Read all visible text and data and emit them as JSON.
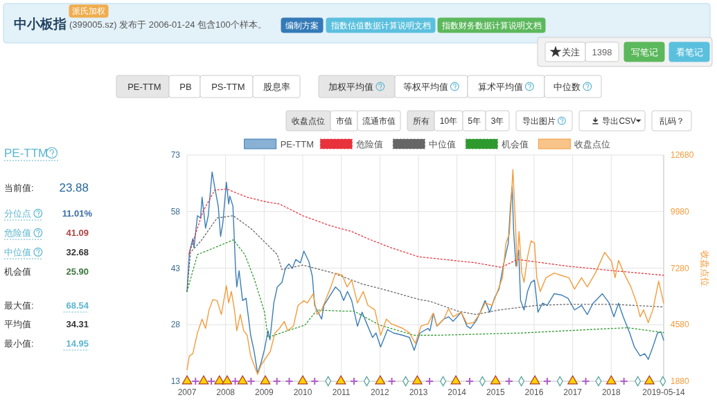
{
  "chart_data": {
    "type": "line",
    "title": "中小板指",
    "subtitle": "(399005.sz) 发布于 2006-01-24 包含100个样本。",
    "y2label": "收盘点位",
    "xlim": [
      2007,
      2019.36
    ],
    "xticks": [
      2007,
      2008,
      2009,
      2010,
      2011,
      2012,
      2013,
      2014,
      2015,
      2016,
      2017,
      2018,
      {
        "value": 2019.36,
        "label": "2019-05-14"
      }
    ],
    "ylim": [
      13,
      73
    ],
    "yticks": [
      13,
      28,
      43,
      58,
      73
    ],
    "y2lim": [
      1880,
      12680
    ],
    "y2ticks": [
      1880,
      4580,
      7280,
      9980,
      12680
    ],
    "grid": true,
    "legend": "top",
    "series": [
      {
        "name": "PE-TTM",
        "color": "#3b7db5",
        "line_style": "solid",
        "x": [
          2007.0,
          2007.06,
          2007.15,
          2007.18,
          2007.27,
          2007.35,
          2007.39,
          2007.43,
          2007.48,
          2007.55,
          2007.65,
          2007.72,
          2007.81,
          2007.87,
          2007.93,
          2008.02,
          2008.08,
          2008.11,
          2008.19,
          2008.26,
          2008.29,
          2008.35,
          2008.44,
          2008.53,
          2008.65,
          2008.74,
          2008.83,
          2008.92,
          2009.01,
          2009.1,
          2009.15,
          2009.25,
          2009.34,
          2009.46,
          2009.55,
          2009.64,
          2009.73,
          2009.82,
          2009.94,
          2010.03,
          2010.16,
          2010.25,
          2010.31,
          2010.4,
          2010.49,
          2010.55,
          2010.7,
          2010.85,
          2010.97,
          2011.06,
          2011.16,
          2011.27,
          2011.42,
          2011.54,
          2011.66,
          2011.81,
          2011.9,
          2012.02,
          2012.2,
          2012.35,
          2012.59,
          2012.77,
          2012.89,
          2013.04,
          2013.25,
          2013.3,
          2013.39,
          2013.48,
          2013.66,
          2013.78,
          2013.9,
          2014.11,
          2014.26,
          2014.35,
          2014.49,
          2014.58,
          2014.73,
          2014.85,
          2014.97,
          2015.09,
          2015.21,
          2015.33,
          2015.39,
          2015.43,
          2015.47,
          2015.53,
          2015.6,
          2015.65,
          2015.74,
          2015.83,
          2015.92,
          2016.01,
          2016.1,
          2016.22,
          2016.34,
          2016.52,
          2016.7,
          2016.88,
          2017.05,
          2017.23,
          2017.38,
          2017.53,
          2017.77,
          2017.95,
          2018.07,
          2018.19,
          2018.31,
          2018.48,
          2018.6,
          2018.75,
          2018.87,
          2018.96,
          2019.08,
          2019.2,
          2019.29,
          2019.36
        ],
        "values": [
          36.8,
          47.2,
          50.8,
          48.4,
          56.9,
          56.3,
          61.8,
          58.2,
          53.6,
          56.9,
          68.5,
          64.3,
          59.4,
          51.4,
          55.1,
          65.8,
          60.0,
          62.1,
          59.4,
          42.3,
          38.0,
          42.3,
          34.4,
          35.0,
          25.2,
          20.9,
          15.1,
          17.9,
          21.5,
          26.4,
          24.0,
          33.7,
          38.0,
          39.2,
          42.9,
          44.1,
          42.9,
          45.3,
          44.4,
          47.5,
          44.7,
          40.8,
          33.1,
          31.3,
          29.5,
          33.1,
          35.6,
          38.0,
          36.8,
          34.4,
          36.8,
          34.4,
          27.6,
          31.3,
          28.3,
          24.6,
          25.8,
          22.1,
          26.7,
          25.8,
          25.2,
          24.6,
          21.2,
          25.8,
          27.0,
          26.4,
          31.0,
          27.6,
          29.5,
          30.1,
          28.9,
          31.3,
          27.6,
          27.0,
          28.9,
          30.7,
          34.4,
          31.3,
          35.0,
          37.4,
          44.1,
          49.6,
          60.0,
          64.6,
          52.7,
          43.5,
          47.8,
          34.4,
          31.9,
          36.8,
          39.2,
          39.8,
          31.3,
          33.7,
          33.1,
          36.2,
          35.9,
          35.0,
          31.9,
          33.1,
          30.7,
          33.7,
          36.2,
          33.7,
          30.1,
          33.7,
          30.1,
          25.8,
          22.1,
          19.7,
          20.3,
          18.8,
          22.1,
          25.8,
          26.1,
          23.9
        ]
      },
      {
        "name": "危险值",
        "color": "#e8323c",
        "line_style": "dotted",
        "x": [
          2007.05,
          2007.24,
          2007.42,
          2007.72,
          2008.02,
          2008.56,
          2009.04,
          2009.4,
          2010.0,
          2010.73,
          2011.27,
          2011.69,
          2012.29,
          2013.01,
          2013.49,
          2014.49,
          2015.15,
          2015.57,
          2016.88,
          2018.07,
          2019.36
        ],
        "values": [
          46.6,
          52.7,
          58.2,
          63.7,
          64.0,
          61.8,
          60.6,
          60.0,
          56.9,
          54.2,
          52.7,
          50.8,
          48.4,
          46.0,
          45.5,
          44.4,
          43.2,
          45.3,
          43.5,
          42.3,
          41.1
        ]
      },
      {
        "name": "中位值",
        "color": "#666666",
        "line_style": "dotted",
        "x": [
          2007.0,
          2007.09,
          2007.36,
          2007.78,
          2008.2,
          2008.68,
          2009.34,
          2009.46,
          2010.0,
          2010.79,
          2011.51,
          2012.29,
          2013.01,
          2013.3,
          2014.02,
          2014.49,
          2015.09,
          2016.04,
          2016.88,
          2018.07,
          2019.36
        ],
        "values": [
          36.8,
          47.2,
          50.2,
          56.3,
          56.9,
          53.3,
          46.6,
          42.6,
          43.8,
          41.7,
          38.9,
          36.8,
          34.7,
          34.2,
          31.6,
          30.7,
          31.9,
          33.1,
          33.4,
          33.4,
          32.7
        ]
      },
      {
        "name": "机会值",
        "color": "#2e9a2e",
        "line_style": "dotted",
        "x": [
          2007.0,
          2007.27,
          2007.57,
          2008.2,
          2008.5,
          2008.74,
          2009.01,
          2009.1,
          2009.52,
          2010.06,
          2010.37,
          2011.03,
          2011.33,
          2011.99,
          2012.89,
          2013.49,
          2015.68,
          2018.42,
          2019.36
        ],
        "values": [
          36.8,
          46.6,
          47.8,
          50.5,
          46.6,
          40.2,
          31.3,
          24.6,
          26.1,
          27.9,
          31.9,
          31.6,
          31.6,
          27.9,
          25.2,
          25.2,
          25.8,
          27.2,
          25.9
        ]
      },
      {
        "name": "收盘点位",
        "color": "#f39c3c",
        "line_style": "solid",
        "axis": "y2",
        "x": [
          2007.0,
          2007.06,
          2007.15,
          2007.27,
          2007.39,
          2007.48,
          2007.57,
          2007.67,
          2007.78,
          2007.89,
          2008.02,
          2008.08,
          2008.15,
          2008.23,
          2008.29,
          2008.38,
          2008.47,
          2008.56,
          2008.65,
          2008.74,
          2008.83,
          2008.92,
          2009.04,
          2009.16,
          2009.28,
          2009.4,
          2009.52,
          2009.61,
          2009.76,
          2009.88,
          2010.03,
          2010.12,
          2010.27,
          2010.37,
          2010.49,
          2010.61,
          2010.73,
          2010.85,
          2011.03,
          2011.15,
          2011.27,
          2011.42,
          2011.57,
          2011.69,
          2011.87,
          2012.02,
          2012.17,
          2012.29,
          2012.59,
          2012.77,
          2012.92,
          2013.07,
          2013.25,
          2013.38,
          2013.48,
          2013.66,
          2013.78,
          2013.9,
          2014.11,
          2014.26,
          2014.43,
          2014.58,
          2014.73,
          2014.91,
          2015.03,
          2015.18,
          2015.27,
          2015.36,
          2015.45,
          2015.52,
          2015.56,
          2015.61,
          2015.68,
          2015.74,
          2015.83,
          2015.92,
          2016.01,
          2016.07,
          2016.16,
          2016.31,
          2016.52,
          2016.7,
          2016.9,
          2017.05,
          2017.23,
          2017.38,
          2017.59,
          2017.83,
          2018.01,
          2018.1,
          2018.19,
          2018.33,
          2018.51,
          2018.66,
          2018.75,
          2018.84,
          2018.96,
          2019.08,
          2019.23,
          2019.36
        ],
        "values": [
          2429,
          3088,
          3198,
          4187,
          4846,
          4407,
          5286,
          5780,
          5725,
          5066,
          6439,
          5615,
          6165,
          5286,
          4297,
          5066,
          4297,
          4077,
          3088,
          2649,
          2209,
          2649,
          2978,
          3308,
          4187,
          4407,
          4736,
          4297,
          4516,
          5505,
          5725,
          5615,
          6055,
          5066,
          5286,
          5835,
          6384,
          7044,
          6934,
          6384,
          6714,
          5615,
          6165,
          5505,
          5286,
          4077,
          4846,
          4627,
          4407,
          4187,
          3693,
          4516,
          4627,
          5121,
          4516,
          4846,
          5341,
          4956,
          5176,
          4627,
          4681,
          5066,
          5615,
          5505,
          6055,
          6824,
          8472,
          8912,
          11988,
          9241,
          7373,
          9021,
          7044,
          6604,
          7813,
          8582,
          8472,
          6824,
          6165,
          6824,
          7044,
          6934,
          6824,
          6275,
          6824,
          6384,
          7044,
          8033,
          7593,
          6824,
          7648,
          7044,
          6384,
          5615,
          4956,
          5286,
          4681,
          5286,
          6659,
          5615
        ]
      },
      {
        "type": "scatter",
        "marker": "triangle",
        "color": "#ffd200",
        "x": [
          2007.0,
          2007.43,
          2007.84,
          2008.04,
          2008.44,
          2009.03,
          2010.0,
          2010.99,
          2012.01,
          2012.97,
          2013.97,
          2015.0,
          2016.02,
          2017.0,
          2018.0,
          2018.99
        ],
        "values": [
          13,
          13,
          13,
          13,
          13,
          13,
          13,
          13,
          13,
          13,
          13,
          13,
          13,
          13,
          13,
          13
        ]
      },
      {
        "type": "scatter",
        "marker": "cross",
        "color": "#b05cc8",
        "x": [
          2007.22,
          2007.63,
          2008.25,
          2008.66,
          2009.33,
          2009.65,
          2010.31,
          2011.33,
          2012.31,
          2013.29,
          2014.33,
          2015.35,
          2016.34,
          2017.34,
          2018.33
        ],
        "values": [
          13,
          13,
          13,
          13,
          13,
          13,
          13,
          13,
          13,
          13,
          13,
          13,
          13,
          13,
          13
        ]
      },
      {
        "type": "scatter",
        "marker": "diamond",
        "color": "#5aa6a0",
        "x": [
          2010.66,
          2011.66,
          2012.67,
          2013.64,
          2014.66,
          2015.67,
          2016.67,
          2017.67,
          2018.69,
          2019.34
        ],
        "values": [
          13,
          13,
          13,
          13,
          13,
          13,
          13,
          13,
          13,
          13
        ]
      }
    ],
    "annotations": [
      "派氏加权",
      "编制方案",
      "指数估值数据计算说明文档",
      "指数财务数据计算说明文档",
      "关注",
      "1398",
      "写笔记",
      "看笔记",
      "PE-TTM",
      "PB",
      "PS-TTM",
      "股息率",
      "加权平均值",
      "等权平均值",
      "算术平均值",
      "中位数",
      "收盘点位",
      "市值",
      "流通市值",
      "所有",
      "10年",
      "5年",
      "3年",
      "导出图片",
      "导出CSV",
      "乱码？",
      "PE-TTM",
      "当前值:",
      "23.88",
      "分位点",
      "11.01%",
      "危险值",
      "41.09",
      "中位值",
      "32.68",
      "机会值",
      "25.90",
      "最大值:",
      "68.54",
      "平均值",
      "34.31",
      "最小值:",
      "14.95"
    ]
  }
}
